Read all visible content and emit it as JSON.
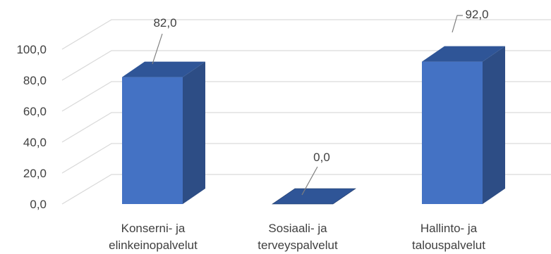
{
  "chart_data": {
    "type": "bar",
    "title": "",
    "xlabel": "",
    "ylabel": "",
    "ylim": [
      0,
      100
    ],
    "yticks": [
      "0,0",
      "20,0",
      "40,0",
      "60,0",
      "80,0",
      "100,0"
    ],
    "grid": true,
    "three_d": true,
    "categories": [
      [
        "Konserni- ja",
        "elinkeinopalvelut"
      ],
      [
        "Sosiaali- ja",
        "terveyspalvelut"
      ],
      [
        "Hallinto- ja",
        "talouspalvelut"
      ]
    ],
    "values": [
      82.0,
      0.0,
      92.0
    ],
    "data_labels": [
      "82,0",
      "0,0",
      "92,0"
    ],
    "colors": {
      "front": "#4472c4",
      "side": "#2d4d85",
      "top": "#2f5597",
      "grid": "#d9d9d9",
      "text": "#404040",
      "leader": "#7f7f7f"
    }
  }
}
